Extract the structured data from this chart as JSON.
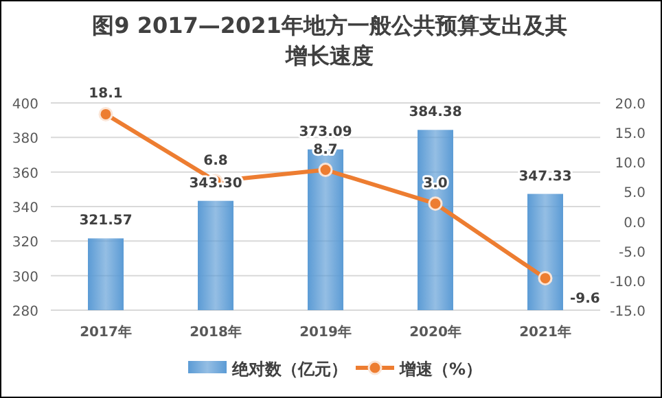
{
  "chart_data": {
    "type": "bar",
    "title": "图9 2017—2021年地方一般公共预算支出及其增长速度",
    "categories": [
      "2017年",
      "2018年",
      "2019年",
      "2020年",
      "2021年"
    ],
    "series": [
      {
        "name": "绝对数（亿元）",
        "color": "#5b9bd5",
        "values": [
          321.57,
          343.3,
          373.09,
          384.38,
          347.33
        ],
        "value_labels": [
          "321.57",
          "343.30",
          "373.09",
          "384.38",
          "347.33"
        ]
      },
      {
        "name": "增速（%）",
        "type": "line",
        "axis": "y2",
        "color": "#ed7d31",
        "values": [
          18.1,
          6.8,
          8.7,
          3.0,
          -9.6
        ],
        "value_labels": [
          "18.1",
          "6.8",
          "8.7",
          "3.0",
          "-9.6"
        ]
      }
    ],
    "ylim": [
      280,
      400
    ],
    "yticks": [
      280,
      300,
      320,
      340,
      360,
      380,
      400
    ],
    "y2lim": [
      -15,
      20
    ],
    "y2ticks": [
      {
        "value": -15,
        "label": "-15.0"
      },
      {
        "value": -10,
        "label": "-10.0"
      },
      {
        "value": -5,
        "label": "-5.0"
      },
      {
        "value": 0,
        "label": "0.0"
      },
      {
        "value": 5,
        "label": "5.0"
      },
      {
        "value": 10,
        "label": "10.0"
      },
      {
        "value": 15,
        "label": "15.0"
      },
      {
        "value": 20,
        "label": "20.0"
      }
    ],
    "grid": "y",
    "legend": "bottom",
    "marker": "circle"
  }
}
